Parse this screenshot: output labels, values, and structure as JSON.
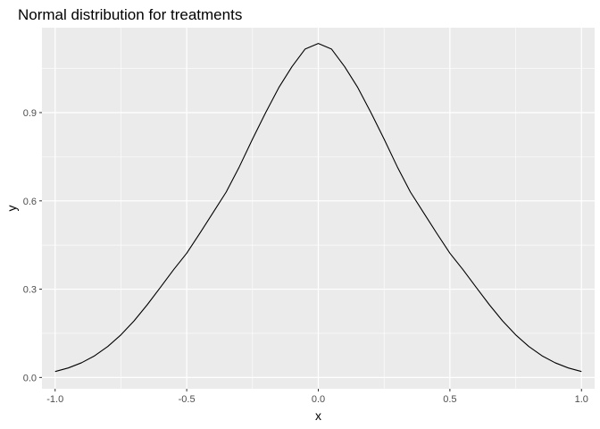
{
  "chart_data": {
    "type": "line",
    "title": "Normal distribution for treatments",
    "xlabel": "x",
    "ylabel": "y",
    "xlim": [
      -1.05,
      1.05
    ],
    "ylim": [
      -0.0384,
      1.1884
    ],
    "x_ticks": [
      -1.0,
      -0.5,
      0.0,
      0.5,
      1.0
    ],
    "x_tick_labels": [
      "-1.0",
      "-0.5",
      "0.0",
      "0.5",
      "1.0"
    ],
    "y_ticks": [
      0.0,
      0.3,
      0.6,
      0.9
    ],
    "y_tick_labels": [
      "0.0",
      "0.3",
      "0.6",
      "0.9"
    ],
    "grid": true,
    "background_color": "#ebebeb",
    "gridline_color": "#ffffff",
    "line_color": "#000000",
    "series": [
      {
        "x": [
          -1.0,
          -0.95,
          -0.9,
          -0.85,
          -0.8,
          -0.75,
          -0.7,
          -0.65,
          -0.6,
          -0.55,
          -0.5,
          -0.45,
          -0.4,
          -0.35,
          -0.3,
          -0.25,
          -0.2,
          -0.15,
          -0.1,
          -0.05,
          0.0,
          0.05,
          0.1,
          0.15,
          0.2,
          0.25,
          0.3,
          0.35,
          0.4,
          0.45,
          0.5,
          0.55,
          0.6,
          0.65,
          0.7,
          0.75,
          0.8,
          0.85,
          0.9,
          0.95,
          1.0
        ],
        "y": [
          0.0202,
          0.0324,
          0.0498,
          0.0737,
          0.1052,
          0.1448,
          0.1924,
          0.247,
          0.306,
          0.366,
          0.4222,
          0.49,
          0.56,
          0.63,
          0.716,
          0.81,
          0.9,
          0.985,
          1.056,
          1.116,
          1.135,
          1.116,
          1.056,
          0.985,
          0.9,
          0.81,
          0.716,
          0.63,
          0.56,
          0.49,
          0.4222,
          0.366,
          0.306,
          0.247,
          0.1924,
          0.1448,
          0.1052,
          0.0737,
          0.0498,
          0.0324,
          0.0202
        ]
      }
    ]
  }
}
